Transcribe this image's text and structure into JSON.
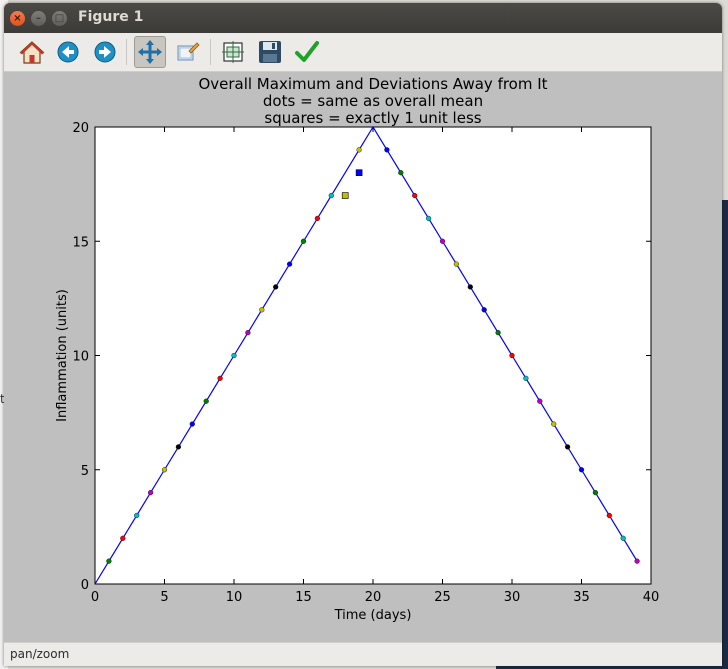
{
  "window": {
    "title": "Figure 1"
  },
  "toolbar": {
    "buttons": [
      {
        "name": "home-icon",
        "tooltip": "Home"
      },
      {
        "name": "back-icon",
        "tooltip": "Back"
      },
      {
        "name": "forward-icon",
        "tooltip": "Forward"
      },
      {
        "name": "pan-icon",
        "tooltip": "Pan",
        "active": true
      },
      {
        "name": "zoom-icon",
        "tooltip": "Zoom"
      },
      {
        "name": "subplots-icon",
        "tooltip": "Subplots"
      },
      {
        "name": "save-icon",
        "tooltip": "Save"
      },
      {
        "name": "edit-icon",
        "tooltip": "Edit"
      }
    ]
  },
  "status": {
    "text": "pan/zoom"
  },
  "background": {
    "stub_text": "t"
  },
  "chart_data": {
    "type": "line",
    "title_lines": [
      "Overall Maximum and Deviations Away from It",
      "dots = same as overall mean",
      "squares = exactly 1 unit less"
    ],
    "xlabel": "Time (days)",
    "ylabel": "Inflammation (units)",
    "xlim": [
      0,
      40
    ],
    "ylim": [
      0,
      20
    ],
    "xticks": [
      "0",
      "5",
      "10",
      "15",
      "20",
      "25",
      "30",
      "35",
      "40"
    ],
    "yticks": [
      "0",
      "5",
      "10",
      "15",
      "20"
    ],
    "grid": false,
    "line": {
      "color": "#0000ff",
      "x": [
        0,
        1,
        2,
        3,
        4,
        5,
        6,
        7,
        8,
        9,
        10,
        11,
        12,
        13,
        14,
        15,
        16,
        17,
        18,
        19,
        20,
        21,
        22,
        23,
        24,
        25,
        26,
        27,
        28,
        29,
        30,
        31,
        32,
        33,
        34,
        35,
        36,
        37,
        38,
        39
      ],
      "y": [
        0,
        1,
        2,
        3,
        4,
        5,
        6,
        7,
        8,
        9,
        10,
        11,
        12,
        13,
        14,
        15,
        16,
        17,
        18,
        19,
        20,
        19,
        18,
        17,
        16,
        15,
        14,
        13,
        12,
        11,
        10,
        9,
        8,
        7,
        6,
        5,
        4,
        3,
        2,
        1
      ]
    },
    "dots": {
      "x": [
        1,
        2,
        3,
        4,
        5,
        6,
        7,
        8,
        9,
        10,
        11,
        12,
        13,
        14,
        15,
        16,
        17,
        19,
        21,
        22,
        23,
        24,
        25,
        26,
        27,
        28,
        29,
        30,
        31,
        32,
        33,
        34,
        35,
        36,
        37,
        38,
        39
      ],
      "y": [
        1,
        2,
        3,
        4,
        5,
        6,
        7,
        8,
        9,
        10,
        11,
        12,
        13,
        14,
        15,
        16,
        17,
        19,
        19,
        18,
        17,
        16,
        15,
        14,
        13,
        12,
        11,
        10,
        9,
        8,
        7,
        6,
        5,
        4,
        3,
        2,
        1
      ],
      "colors": [
        "#008000",
        "#ff0000",
        "#00bfbf",
        "#bf00bf",
        "#bfbf00",
        "#000000",
        "#0000ff",
        "#008000",
        "#ff0000",
        "#00bfbf",
        "#bf00bf",
        "#bfbf00",
        "#000000",
        "#0000ff",
        "#008000",
        "#ff0000",
        "#00bfbf",
        "#bfbf00",
        "#0000ff",
        "#008000",
        "#ff0000",
        "#00bfbf",
        "#bf00bf",
        "#bfbf00",
        "#000000",
        "#0000ff",
        "#008000",
        "#ff0000",
        "#00bfbf",
        "#bf00bf",
        "#bfbf00",
        "#000000",
        "#0000ff",
        "#008000",
        "#ff0000",
        "#00bfbf",
        "#bf00bf"
      ]
    },
    "squares": {
      "x": [
        18,
        19
      ],
      "y": [
        17,
        18
      ],
      "colors": [
        "#bfbf00",
        "#0000ff"
      ]
    }
  }
}
